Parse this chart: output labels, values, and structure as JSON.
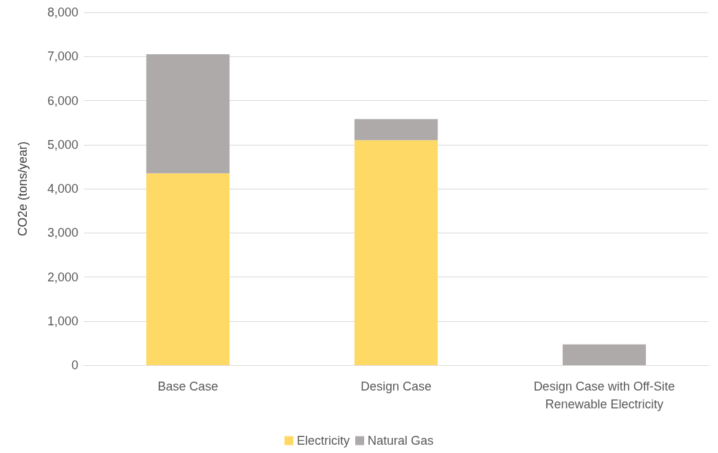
{
  "chart_data": {
    "type": "bar",
    "stacked": true,
    "ylabel": "CO2e (tons/year)",
    "categories": [
      "Base Case",
      "Design Case",
      "Design Case with Off-Site\nRenewable Electricity"
    ],
    "series": [
      {
        "name": "Electricity",
        "color": "#ffd966",
        "values": [
          4350,
          5100,
          0
        ]
      },
      {
        "name": "Natural Gas",
        "color": "#aeaaaa",
        "values": [
          2700,
          480,
          470
        ]
      }
    ],
    "ylim": [
      0,
      8000
    ],
    "yticks": [
      0,
      {
        "value": 1000,
        "label": "1,000"
      },
      {
        "value": 2000,
        "label": "2,000"
      },
      {
        "value": 3000,
        "label": "3,000"
      },
      {
        "value": 4000,
        "label": "4,000"
      },
      {
        "value": 5000,
        "label": "5,000"
      },
      {
        "value": 6000,
        "label": "6,000"
      },
      {
        "value": 7000,
        "label": "7,000"
      },
      {
        "value": 8000,
        "label": "8,000"
      }
    ],
    "grid": "y",
    "legend": "bottom"
  }
}
